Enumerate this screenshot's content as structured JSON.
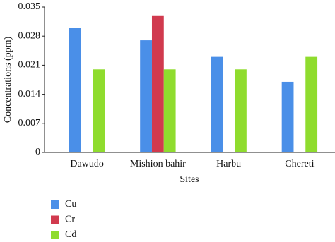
{
  "chart_data": {
    "type": "bar",
    "x_label": "Sites",
    "y_label": "Concentrations (ppm)",
    "categories": [
      "Dawudo",
      "Mishion bahir",
      "Harbu",
      "Chereti"
    ],
    "series": [
      {
        "name": "Cu",
        "color": "#4a8fe8",
        "values": [
          0.03,
          0.027,
          0.023,
          0.017
        ]
      },
      {
        "name": "Cr",
        "color": "#d13a4e",
        "values": [
          null,
          0.033,
          null,
          null
        ]
      },
      {
        "name": "Cd",
        "color": "#8fdc2e",
        "values": [
          0.02,
          0.02,
          0.02,
          0.023
        ]
      }
    ],
    "ylim": [
      0,
      0.035
    ],
    "yticks": [
      0,
      0.007,
      0.014,
      0.021,
      0.028,
      0.035
    ],
    "grid": false,
    "legend": "bottom-left"
  }
}
